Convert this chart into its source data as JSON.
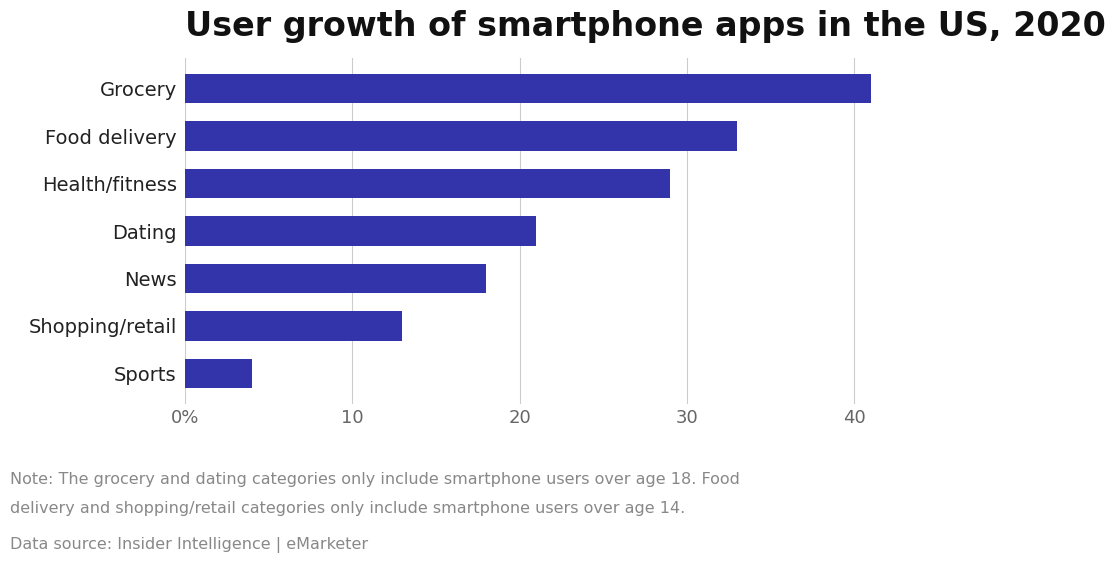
{
  "title": "User growth of smartphone apps in the US, 2020",
  "categories": [
    "Grocery",
    "Food delivery",
    "Health/fitness",
    "Dating",
    "News",
    "Shopping/retail",
    "Sports"
  ],
  "values": [
    41,
    33,
    29,
    21,
    18,
    13,
    4
  ],
  "bar_color": "#3333aa",
  "xlim": [
    0,
    43
  ],
  "xticks": [
    0,
    10,
    20,
    30,
    40
  ],
  "xtick_labels": [
    "0%",
    "10",
    "20",
    "30",
    "40"
  ],
  "note_line1": "Note: The grocery and dating categories only include smartphone users over age 18. Food",
  "note_line2": "delivery and shopping/retail categories only include smartphone users over age 14.",
  "source": "Data source: Insider Intelligence | eMarketer",
  "title_fontsize": 24,
  "label_fontsize": 14,
  "tick_fontsize": 13,
  "note_fontsize": 11.5,
  "background_color": "#ffffff",
  "grid_color": "#cccccc",
  "bar_height": 0.62
}
